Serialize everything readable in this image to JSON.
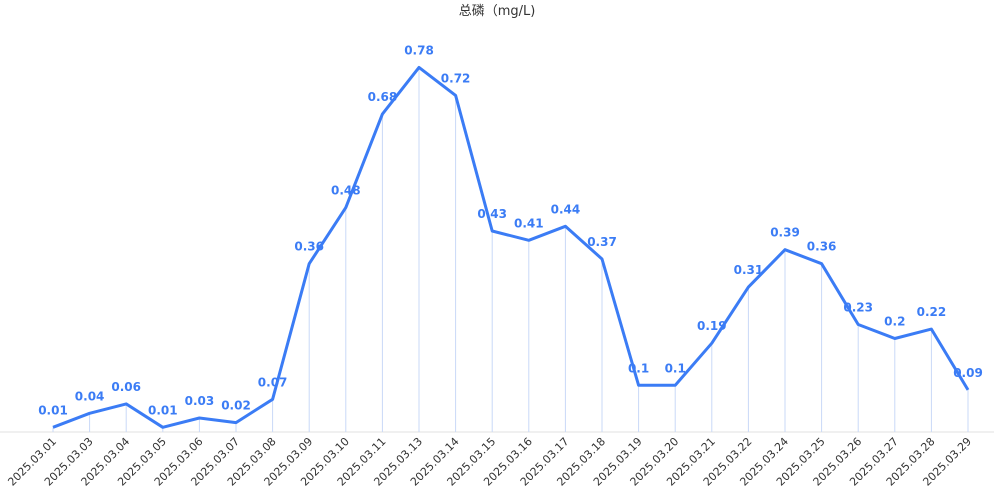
{
  "chart_data": {
    "type": "line",
    "title": "总磷（mg/L)",
    "xlabel": "",
    "ylabel": "",
    "ylim": [
      0,
      0.8
    ],
    "grid": false,
    "legend": "none",
    "line_color": "#3b7cf5",
    "categories": [
      "2025.03.01",
      "2025.03.03",
      "2025.03.04",
      "2025.03.05",
      "2025.03.06",
      "2025.03.07",
      "2025.03.08",
      "2025.03.09",
      "2025.03.10",
      "2025.03.11",
      "2025.03.13",
      "2025.03.14",
      "2025.03.15",
      "2025.03.16",
      "2025.03.17",
      "2025.03.18",
      "2025.03.19",
      "2025.03.20",
      "2025.03.21",
      "2025.03.22",
      "2025.03.24",
      "2025.03.25",
      "2025.03.26",
      "2025.03.27",
      "2025.03.28",
      "2025.03.29"
    ],
    "series": [
      {
        "values": [
          0.01,
          0.04,
          0.06,
          0.01,
          0.03,
          0.02,
          0.07,
          0.36,
          0.48,
          0.68,
          0.78,
          0.72,
          0.43,
          0.41,
          0.44,
          0.37,
          0.1,
          0.1,
          0.19,
          0.31,
          0.39,
          0.36,
          0.23,
          0.2,
          0.22,
          0.09
        ]
      }
    ]
  }
}
